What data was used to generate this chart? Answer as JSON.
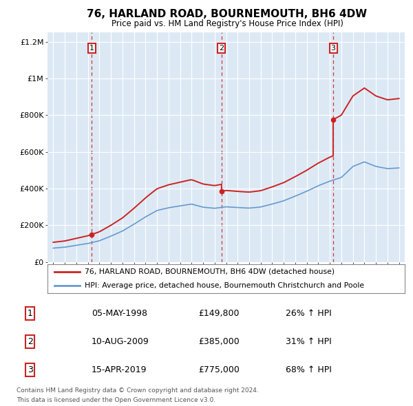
{
  "title": "76, HARLAND ROAD, BOURNEMOUTH, BH6 4DW",
  "subtitle": "Price paid vs. HM Land Registry's House Price Index (HPI)",
  "bg_color": "#dce9f5",
  "hpi_color": "#6699cc",
  "price_color": "#cc2222",
  "transactions": [
    {
      "num": 1,
      "date": "05-MAY-1998",
      "price": 149800,
      "year": 1998.35,
      "pct": "26%",
      "dir": "↑"
    },
    {
      "num": 2,
      "date": "10-AUG-2009",
      "price": 385000,
      "year": 2009.6,
      "pct": "31%",
      "dir": "↑"
    },
    {
      "num": 3,
      "date": "15-APR-2019",
      "price": 775000,
      "year": 2019.29,
      "pct": "68%",
      "dir": "↑"
    }
  ],
  "legend_line1": "76, HARLAND ROAD, BOURNEMOUTH, BH6 4DW (detached house)",
  "legend_line2": "HPI: Average price, detached house, Bournemouth Christchurch and Poole",
  "footer1": "Contains HM Land Registry data © Crown copyright and database right 2024.",
  "footer2": "This data is licensed under the Open Government Licence v3.0.",
  "ylim": [
    0,
    1250000
  ],
  "xlim": [
    1994.5,
    2025.5
  ],
  "yticks": [
    0,
    200000,
    400000,
    600000,
    800000,
    1000000,
    1200000
  ],
  "ytick_labels": [
    "£0",
    "£200K",
    "£400K",
    "£600K",
    "£800K",
    "£1M",
    "£1.2M"
  ],
  "xticks": [
    1995,
    1996,
    1997,
    1998,
    1999,
    2000,
    2001,
    2002,
    2003,
    2004,
    2005,
    2006,
    2007,
    2008,
    2009,
    2010,
    2011,
    2012,
    2013,
    2014,
    2015,
    2016,
    2017,
    2018,
    2019,
    2020,
    2021,
    2022,
    2023,
    2024,
    2025
  ],
  "hpi_years": [
    1995,
    1996,
    1997,
    1998,
    1999,
    2000,
    2001,
    2002,
    2003,
    2004,
    2005,
    2006,
    2007,
    2008,
    2009,
    2010,
    2011,
    2012,
    2013,
    2014,
    2015,
    2016,
    2017,
    2018,
    2019,
    2020,
    2021,
    2022,
    2023,
    2024,
    2025
  ],
  "hpi_values": [
    75000,
    80000,
    90000,
    100000,
    115000,
    140000,
    168000,
    205000,
    245000,
    280000,
    295000,
    305000,
    315000,
    298000,
    292000,
    300000,
    296000,
    293000,
    299000,
    315000,
    333000,
    358000,
    385000,
    415000,
    440000,
    460000,
    520000,
    545000,
    520000,
    508000,
    512000
  ]
}
